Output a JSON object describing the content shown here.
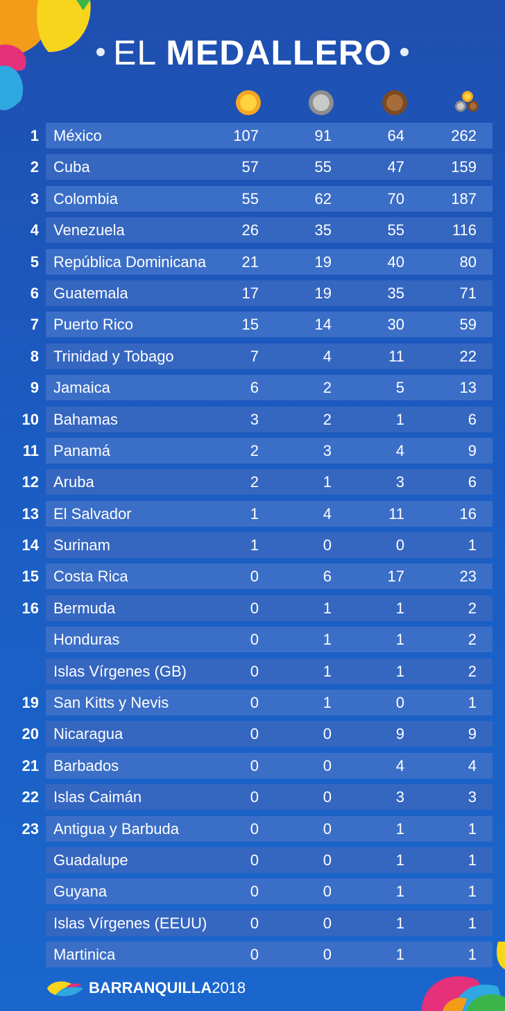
{
  "header": {
    "title_light": "EL",
    "title_bold": "MEDALLERO"
  },
  "columns": {
    "gold_icon": "gold-medal-icon",
    "silver_icon": "silver-medal-icon",
    "bronze_icon": "bronze-medal-icon",
    "total_icon": "medals-total-icon"
  },
  "colors": {
    "background": "#1f58bc",
    "row_bar": "#3a6cc4",
    "gold": "#f5a623",
    "silver": "#9e9e9e",
    "bronze": "#8b5a2b"
  },
  "rows": [
    {
      "rank": "1",
      "country": "México",
      "gold": "107",
      "silver": "91",
      "bronze": "64",
      "total": "262"
    },
    {
      "rank": "2",
      "country": "Cuba",
      "gold": "57",
      "silver": "55",
      "bronze": "47",
      "total": "159"
    },
    {
      "rank": "3",
      "country": "Colombia",
      "gold": "55",
      "silver": "62",
      "bronze": "70",
      "total": "187"
    },
    {
      "rank": "4",
      "country": "Venezuela",
      "gold": "26",
      "silver": "35",
      "bronze": "55",
      "total": "116"
    },
    {
      "rank": "5",
      "country": "República Dominicana",
      "gold": "21",
      "silver": "19",
      "bronze": "40",
      "total": "80"
    },
    {
      "rank": "6",
      "country": "Guatemala",
      "gold": "17",
      "silver": "19",
      "bronze": "35",
      "total": "71"
    },
    {
      "rank": "7",
      "country": "Puerto Rico",
      "gold": "15",
      "silver": "14",
      "bronze": "30",
      "total": "59"
    },
    {
      "rank": "8",
      "country": "Trinidad y Tobago",
      "gold": "7",
      "silver": "4",
      "bronze": "11",
      "total": "22"
    },
    {
      "rank": "9",
      "country": "Jamaica",
      "gold": "6",
      "silver": "2",
      "bronze": "5",
      "total": "13"
    },
    {
      "rank": "10",
      "country": "Bahamas",
      "gold": "3",
      "silver": "2",
      "bronze": "1",
      "total": "6"
    },
    {
      "rank": "11",
      "country": "Panamá",
      "gold": "2",
      "silver": "3",
      "bronze": "4",
      "total": "9"
    },
    {
      "rank": "12",
      "country": "Aruba",
      "gold": "2",
      "silver": "1",
      "bronze": "3",
      "total": "6"
    },
    {
      "rank": "13",
      "country": "El Salvador",
      "gold": "1",
      "silver": "4",
      "bronze": "11",
      "total": "16"
    },
    {
      "rank": "14",
      "country": "Surinam",
      "gold": "1",
      "silver": "0",
      "bronze": "0",
      "total": "1"
    },
    {
      "rank": "15",
      "country": "Costa Rica",
      "gold": "0",
      "silver": "6",
      "bronze": "17",
      "total": "23"
    },
    {
      "rank": "16",
      "country": "Bermuda",
      "gold": "0",
      "silver": "1",
      "bronze": "1",
      "total": "2"
    },
    {
      "rank": "",
      "country": "Honduras",
      "gold": "0",
      "silver": "1",
      "bronze": "1",
      "total": "2"
    },
    {
      "rank": "",
      "country": "Islas Vírgenes (GB)",
      "gold": "0",
      "silver": "1",
      "bronze": "1",
      "total": "2"
    },
    {
      "rank": "19",
      "country": "San Kitts y Nevis",
      "gold": "0",
      "silver": "1",
      "bronze": "0",
      "total": "1"
    },
    {
      "rank": "20",
      "country": "Nicaragua",
      "gold": "0",
      "silver": "0",
      "bronze": "9",
      "total": "9"
    },
    {
      "rank": "21",
      "country": "Barbados",
      "gold": "0",
      "silver": "0",
      "bronze": "4",
      "total": "4"
    },
    {
      "rank": "22",
      "country": "Islas Caimán",
      "gold": "0",
      "silver": "0",
      "bronze": "3",
      "total": "3"
    },
    {
      "rank": "23",
      "country": "Antigua y Barbuda",
      "gold": "0",
      "silver": "0",
      "bronze": "1",
      "total": "1"
    },
    {
      "rank": "",
      "country": "Guadalupe",
      "gold": "0",
      "silver": "0",
      "bronze": "1",
      "total": "1"
    },
    {
      "rank": "",
      "country": "Guyana",
      "gold": "0",
      "silver": "0",
      "bronze": "1",
      "total": "1"
    },
    {
      "rank": "",
      "country": "Islas Vírgenes (EEUU)",
      "gold": "0",
      "silver": "0",
      "bronze": "1",
      "total": "1"
    },
    {
      "rank": "",
      "country": "Martinica",
      "gold": "0",
      "silver": "0",
      "bronze": "1",
      "total": "1"
    }
  ],
  "footer": {
    "logo_icon": "barranquilla-logo-icon",
    "brand_bold": "BARRANQUILLA",
    "brand_year": "2018"
  }
}
